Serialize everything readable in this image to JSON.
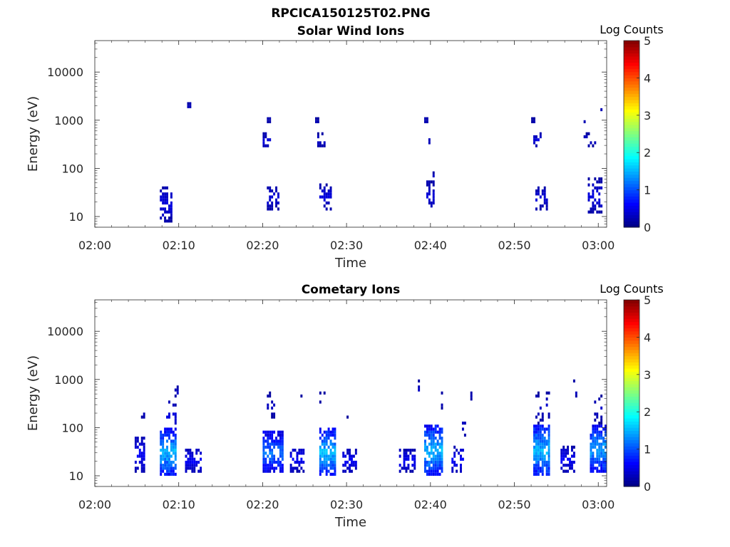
{
  "figure": {
    "title": "RPCICA150125T02.PNG"
  },
  "colorbar": {
    "label": "Log Counts",
    "ticks": [
      0,
      1,
      2,
      3,
      4,
      5
    ],
    "range": [
      0,
      5
    ],
    "colormap": "jet"
  },
  "chart_data": [
    {
      "type": "heatmap",
      "title": "Solar Wind Ions",
      "xlabel": "Time",
      "ylabel": "Energy (eV)",
      "x_ticks": [
        "02:00",
        "02:10",
        "02:20",
        "02:30",
        "02:40",
        "02:50",
        "03:00"
      ],
      "xlim_minutes": [
        0,
        61
      ],
      "y_ticks": [
        "10",
        "100",
        "1000",
        "10000"
      ],
      "y_tick_values": [
        10,
        100,
        1000,
        10000
      ],
      "ylim": [
        6,
        45000
      ],
      "y_scale": "log",
      "colorbar_label": "Log Counts",
      "clusters": [
        {
          "t": 11.3,
          "dt": 0.3,
          "emin": 1800,
          "emax": 2300,
          "level": 0.3,
          "density": 0.9
        },
        {
          "t": 8.4,
          "dt": 1.3,
          "emin": 8,
          "emax": 40,
          "level": 0.4,
          "density": 0.6
        },
        {
          "t": 20.6,
          "dt": 0.8,
          "emin": 280,
          "emax": 500,
          "level": 0.4,
          "density": 0.6
        },
        {
          "t": 20.8,
          "dt": 0.3,
          "emin": 900,
          "emax": 1100,
          "level": 0.3,
          "density": 0.7
        },
        {
          "t": 21.3,
          "dt": 1.3,
          "emin": 15,
          "emax": 40,
          "level": 0.4,
          "density": 0.6
        },
        {
          "t": 26.5,
          "dt": 0.3,
          "emin": 900,
          "emax": 1100,
          "level": 0.3,
          "density": 0.7
        },
        {
          "t": 27.0,
          "dt": 1.0,
          "emin": 300,
          "emax": 500,
          "level": 0.4,
          "density": 0.6
        },
        {
          "t": 27.5,
          "dt": 1.5,
          "emin": 15,
          "emax": 45,
          "level": 0.4,
          "density": 0.6
        },
        {
          "t": 39.5,
          "dt": 0.4,
          "emin": 900,
          "emax": 1100,
          "level": 0.3,
          "density": 0.9
        },
        {
          "t": 40.0,
          "dt": 0.1,
          "emin": 320,
          "emax": 420,
          "level": 0.3,
          "density": 0.8
        },
        {
          "t": 40.5,
          "dt": 0.1,
          "emin": 65,
          "emax": 80,
          "level": 0.3,
          "density": 0.8
        },
        {
          "t": 40.2,
          "dt": 1.0,
          "emin": 15,
          "emax": 50,
          "level": 0.4,
          "density": 0.55
        },
        {
          "t": 52.3,
          "dt": 0.4,
          "emin": 900,
          "emax": 1100,
          "level": 0.3,
          "density": 0.9
        },
        {
          "t": 52.8,
          "dt": 0.9,
          "emin": 300,
          "emax": 500,
          "level": 0.4,
          "density": 0.55
        },
        {
          "t": 53.2,
          "dt": 1.3,
          "emin": 15,
          "emax": 40,
          "level": 0.4,
          "density": 0.55
        },
        {
          "t": 59.0,
          "dt": 1.5,
          "emin": 280,
          "emax": 550,
          "level": 0.3,
          "density": 0.35
        },
        {
          "t": 58.4,
          "dt": 0.2,
          "emin": 900,
          "emax": 1000,
          "level": 0.3,
          "density": 0.8
        },
        {
          "t": 60.4,
          "dt": 0.2,
          "emin": 1300,
          "emax": 2500,
          "level": 0.3,
          "density": 0.5
        },
        {
          "t": 59.7,
          "dt": 1.7,
          "emin": 12,
          "emax": 60,
          "level": 0.4,
          "density": 0.45
        }
      ]
    },
    {
      "type": "heatmap",
      "title": "Cometary Ions",
      "xlabel": "Time",
      "ylabel": "Energy (eV)",
      "x_ticks": [
        "02:00",
        "02:10",
        "02:20",
        "02:30",
        "02:40",
        "02:50",
        "03:00"
      ],
      "xlim_minutes": [
        0,
        61
      ],
      "y_ticks": [
        "10",
        "100",
        "1000",
        "10000"
      ],
      "y_tick_values": [
        10,
        100,
        1000,
        10000
      ],
      "ylim": [
        6,
        45000
      ],
      "y_scale": "log",
      "colorbar_label": "Log Counts",
      "clusters": [
        {
          "t": 5.4,
          "dt": 1.1,
          "emin": 12,
          "emax": 60,
          "level": 0.5,
          "density": 0.6
        },
        {
          "t": 5.7,
          "dt": 0.3,
          "emin": 160,
          "emax": 200,
          "level": 0.3,
          "density": 0.7
        },
        {
          "t": 8.8,
          "dt": 2.0,
          "emin": 10,
          "emax": 90,
          "level": 1.3,
          "density": 0.8
        },
        {
          "t": 9.3,
          "dt": 1.2,
          "emin": 90,
          "emax": 350,
          "level": 0.4,
          "density": 0.25
        },
        {
          "t": 9.7,
          "dt": 0.3,
          "emin": 450,
          "emax": 650,
          "level": 0.3,
          "density": 0.7
        },
        {
          "t": 11.8,
          "dt": 1.9,
          "emin": 12,
          "emax": 35,
          "level": 0.5,
          "density": 0.6
        },
        {
          "t": 21.2,
          "dt": 2.4,
          "emin": 12,
          "emax": 75,
          "level": 1.0,
          "density": 0.75
        },
        {
          "t": 21.1,
          "dt": 0.8,
          "emin": 150,
          "emax": 500,
          "level": 0.3,
          "density": 0.3
        },
        {
          "t": 24.2,
          "dt": 1.6,
          "emin": 12,
          "emax": 40,
          "level": 0.5,
          "density": 0.55
        },
        {
          "t": 24.6,
          "dt": 0.2,
          "emin": 380,
          "emax": 450,
          "level": 0.3,
          "density": 0.8
        },
        {
          "t": 27.9,
          "dt": 1.9,
          "emin": 10,
          "emax": 90,
          "level": 1.3,
          "density": 0.8
        },
        {
          "t": 27.3,
          "dt": 0.8,
          "emin": 350,
          "emax": 500,
          "level": 0.3,
          "density": 0.35
        },
        {
          "t": 30.4,
          "dt": 1.7,
          "emin": 12,
          "emax": 35,
          "level": 0.5,
          "density": 0.55
        },
        {
          "t": 30.3,
          "dt": 0.2,
          "emin": 165,
          "emax": 195,
          "level": 0.3,
          "density": 0.8
        },
        {
          "t": 37.2,
          "dt": 1.8,
          "emin": 12,
          "emax": 35,
          "level": 0.5,
          "density": 0.55
        },
        {
          "t": 40.3,
          "dt": 2.1,
          "emin": 10,
          "emax": 110,
          "level": 1.3,
          "density": 0.8
        },
        {
          "t": 38.7,
          "dt": 0.2,
          "emin": 450,
          "emax": 900,
          "level": 0.3,
          "density": 0.5
        },
        {
          "t": 38.5,
          "dt": 0.2,
          "emin": 280,
          "emax": 350,
          "level": 0.3,
          "density": 0.6
        },
        {
          "t": 41.3,
          "dt": 0.3,
          "emin": 250,
          "emax": 550,
          "level": 0.3,
          "density": 0.35
        },
        {
          "t": 43.3,
          "dt": 1.5,
          "emin": 12,
          "emax": 40,
          "level": 0.5,
          "density": 0.55
        },
        {
          "t": 44.0,
          "dt": 0.4,
          "emin": 65,
          "emax": 200,
          "level": 0.3,
          "density": 0.3
        },
        {
          "t": 45.0,
          "dt": 0.2,
          "emin": 420,
          "emax": 560,
          "level": 0.3,
          "density": 0.8
        },
        {
          "t": 53.4,
          "dt": 2.0,
          "emin": 10,
          "emax": 110,
          "level": 1.3,
          "density": 0.78
        },
        {
          "t": 53.5,
          "dt": 1.6,
          "emin": 130,
          "emax": 550,
          "level": 0.3,
          "density": 0.22
        },
        {
          "t": 56.4,
          "dt": 1.6,
          "emin": 12,
          "emax": 40,
          "level": 0.5,
          "density": 0.6
        },
        {
          "t": 57.2,
          "dt": 0.4,
          "emin": 430,
          "emax": 950,
          "level": 0.3,
          "density": 0.45
        },
        {
          "t": 59.9,
          "dt": 1.8,
          "emin": 12,
          "emax": 110,
          "level": 1.2,
          "density": 0.78
        },
        {
          "t": 60.0,
          "dt": 0.8,
          "emin": 130,
          "emax": 450,
          "level": 0.3,
          "density": 0.3
        }
      ]
    }
  ]
}
